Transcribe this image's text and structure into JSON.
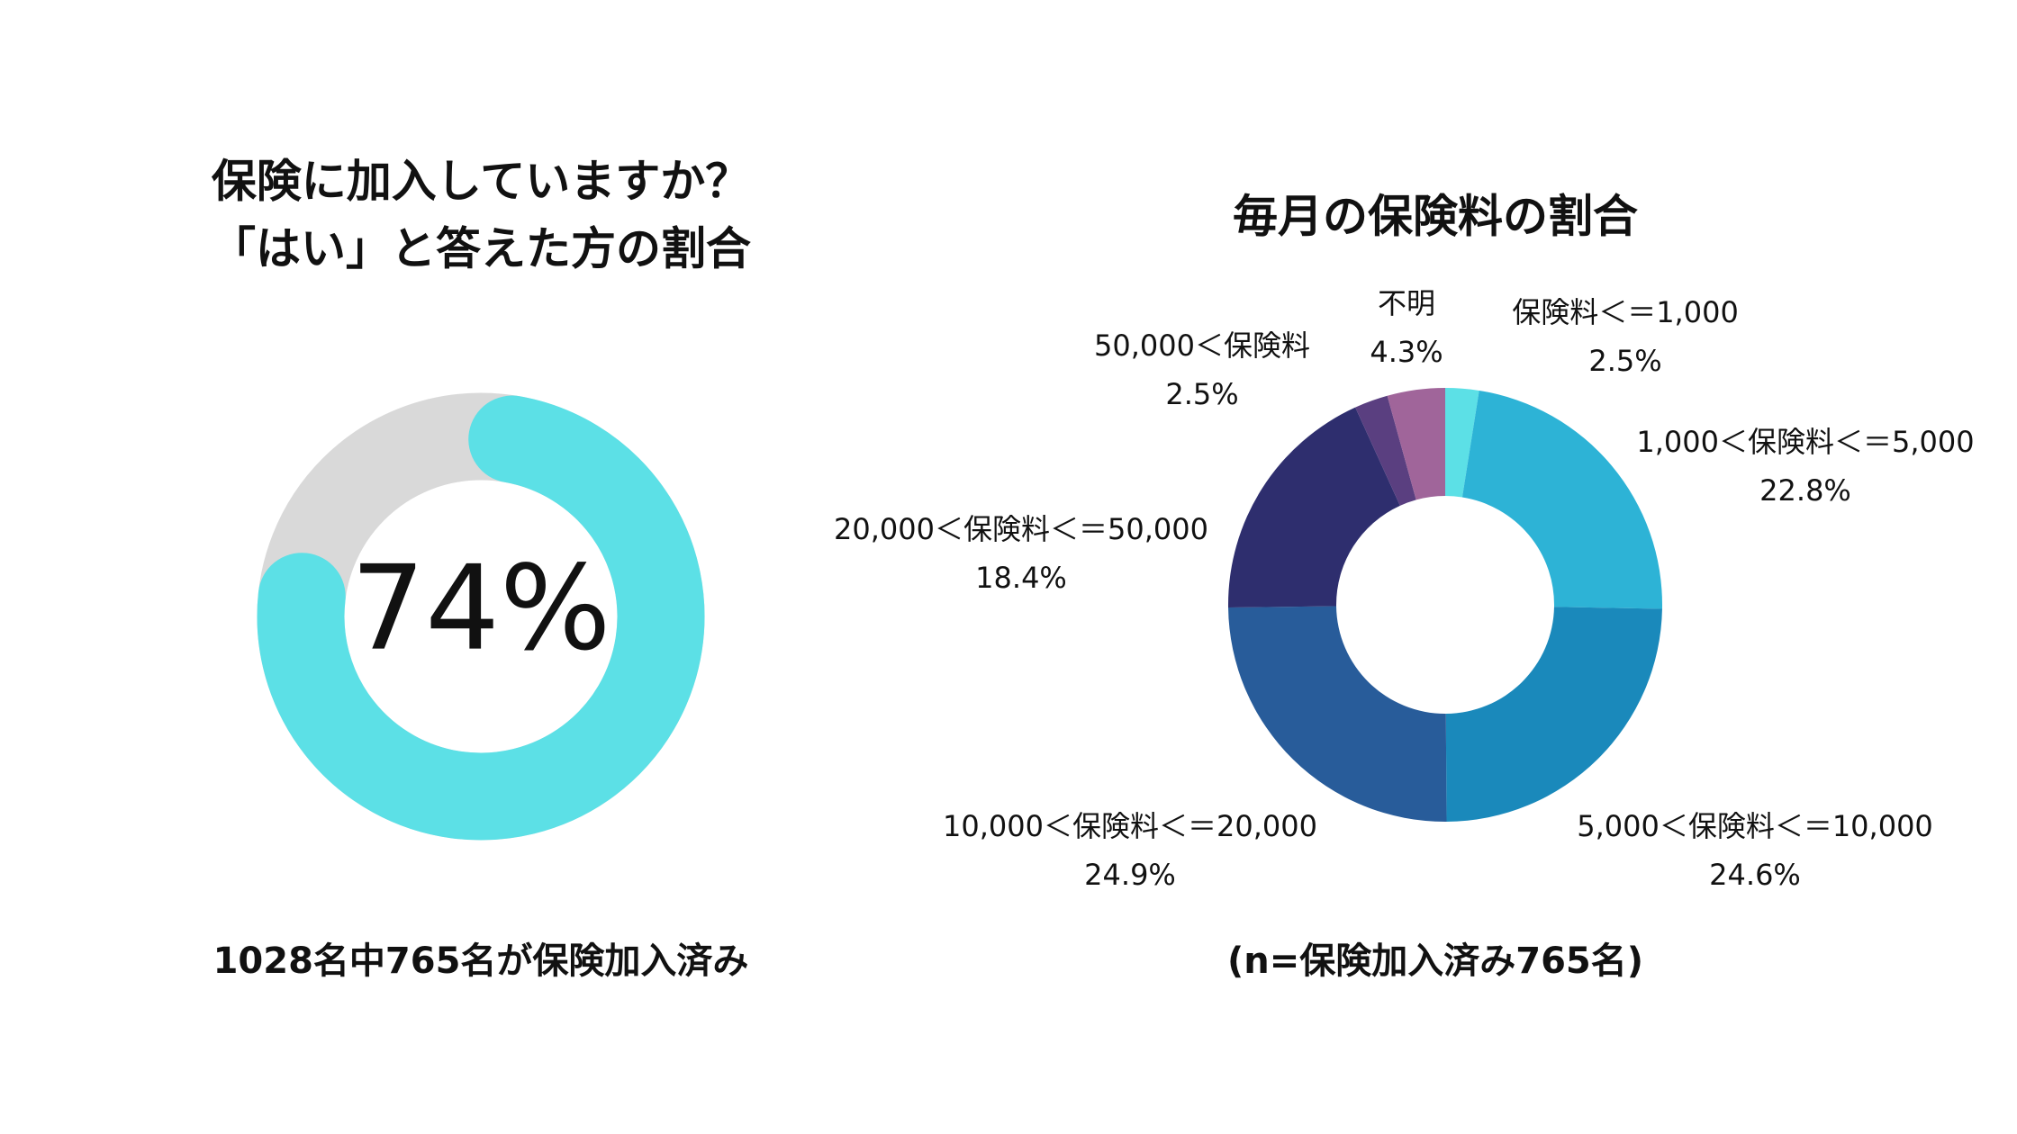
{
  "chart_data": [
    {
      "type": "progress",
      "title": [
        "保険に加入していますか？",
        "「はい」と答えた方の割合"
      ],
      "value": 74,
      "value_label": "74%",
      "max": 100,
      "color": "#5ce0e6",
      "track_color": "#d9d9d9",
      "caption": "1028名中765名が保険加入済み"
    },
    {
      "type": "donut",
      "title": "毎月の保険料の割合",
      "categories": [
        "保険料＜＝1,000",
        "1,000＜保険料＜＝5,000",
        "5,000＜保険料＜＝10,000",
        "10,000＜保険料＜＝20,000",
        "20,000＜保険料＜＝50,000",
        "50,000＜保険料",
        "不明"
      ],
      "values": [
        2.5,
        22.8,
        24.6,
        24.9,
        18.4,
        2.5,
        4.3
      ],
      "value_labels": [
        "2.5%",
        "22.8%",
        "24.6%",
        "24.9%",
        "18.4%",
        "2.5%",
        "4.3%"
      ],
      "colors": [
        "#5ce0e6",
        "#2db3d6",
        "#1a89bb",
        "#285c9a",
        "#2e2e6e",
        "#5a3f80",
        "#a0659a"
      ],
      "caption": "(n=保険加入済み765名)"
    }
  ]
}
